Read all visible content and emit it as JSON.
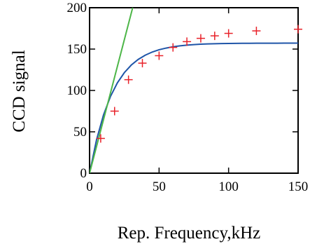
{
  "chart_data": {
    "type": "scatter",
    "title": "",
    "xlabel": "Rep. Frequency,kHz",
    "ylabel": "CCD signal",
    "xlim": [
      0,
      150
    ],
    "ylim": [
      0,
      200
    ],
    "x_ticks": [
      "0",
      "50",
      "100",
      "150"
    ],
    "y_ticks": [
      "0",
      "50",
      "100",
      "150",
      "200"
    ],
    "grid": false,
    "legend": "none",
    "series": [
      {
        "kind": "markers",
        "marker": "plus",
        "color": "#e8222a",
        "x": [
          8,
          18,
          28,
          38,
          50,
          60,
          70,
          80,
          90,
          100,
          120,
          150
        ],
        "y": [
          42,
          75,
          113,
          133,
          142,
          152,
          159,
          163,
          166,
          169,
          172,
          174
        ]
      },
      {
        "kind": "line",
        "color": "#1f55a8",
        "x": [
          0,
          5,
          10,
          15,
          20,
          25,
          30,
          35,
          40,
          45,
          50,
          55,
          60,
          65,
          70,
          75,
          80,
          85,
          90,
          95,
          100,
          105,
          110,
          115,
          120,
          125,
          130,
          135,
          140,
          145,
          150
        ],
        "y": [
          0,
          40.3,
          70.3,
          92.6,
          109.2,
          121.5,
          130.7,
          137.5,
          142.6,
          146.4,
          149.2,
          151.2,
          152.8,
          153.9,
          154.8,
          155.4,
          155.9,
          156.2,
          156.5,
          156.7,
          156.8,
          156.9,
          157.0,
          157.0,
          157.1,
          157.1,
          157.1,
          157.1,
          157.2,
          157.2,
          157.2
        ]
      },
      {
        "kind": "line",
        "color": "#4db648",
        "x": [
          0,
          31
        ],
        "y": [
          0,
          200
        ]
      }
    ]
  }
}
